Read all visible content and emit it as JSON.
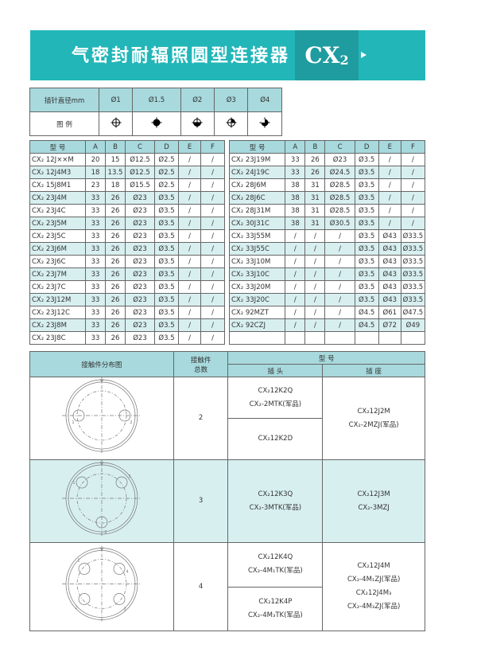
{
  "banner": {
    "title": "气密封耐辐照圆型连接器",
    "code": "CX",
    "code_sub": "2"
  },
  "pin_table": {
    "header_label": "插针直径mm",
    "legend_label": "图 例",
    "diameters": [
      "Ø1",
      "Ø1.5",
      "Ø2",
      "Ø3",
      "Ø4"
    ],
    "icons": [
      "crosshair-open-icon",
      "filled-circle-icon",
      "half-filled-bottom-icon",
      "quarter-filled-icon",
      "three-quarter-filled-icon"
    ]
  },
  "spec_headers": [
    "型 号",
    "A",
    "B",
    "C",
    "D",
    "E",
    "F"
  ],
  "spec_left": [
    [
      "CX₂ 12J××M",
      "20",
      "15",
      "Ø12.5",
      "Ø2.5",
      "/",
      "/"
    ],
    [
      "CX₂ 12J4M3",
      "18",
      "13.5",
      "Ø12.5",
      "Ø2.5",
      "/",
      "/"
    ],
    [
      "CX₂ 15J8M1",
      "23",
      "18",
      "Ø15.5",
      "Ø2.5",
      "/",
      "/"
    ],
    [
      "CX₂ 23J4M",
      "33",
      "26",
      "Ø23",
      "Ø3.5",
      "/",
      "/"
    ],
    [
      "CX₂ 23J4C",
      "33",
      "26",
      "Ø23",
      "Ø3.5",
      "/",
      "/"
    ],
    [
      "CX₂ 23J5M",
      "33",
      "26",
      "Ø23",
      "Ø3.5",
      "/",
      "/"
    ],
    [
      "CX₂ 23J5C",
      "33",
      "26",
      "Ø23",
      "Ø3.5",
      "/",
      "/"
    ],
    [
      "CX₂ 23J6M",
      "33",
      "26",
      "Ø23",
      "Ø3.5",
      "/",
      "/"
    ],
    [
      "CX₂ 23J6C",
      "33",
      "26",
      "Ø23",
      "Ø3.5",
      "/",
      "/"
    ],
    [
      "CX₂ 23J7M",
      "33",
      "26",
      "Ø23",
      "Ø3.5",
      "/",
      "/"
    ],
    [
      "CX₂ 23J7C",
      "33",
      "26",
      "Ø23",
      "Ø3.5",
      "/",
      "/"
    ],
    [
      "CX₂ 23J12M",
      "33",
      "26",
      "Ø23",
      "Ø3.5",
      "/",
      "/"
    ],
    [
      "CX₂ 23J12C",
      "33",
      "26",
      "Ø23",
      "Ø3.5",
      "/",
      "/"
    ],
    [
      "CX₂ 23J8M",
      "33",
      "26",
      "Ø23",
      "Ø3.5",
      "/",
      "/"
    ],
    [
      "CX₂ 23J8C",
      "33",
      "26",
      "Ø23",
      "Ø3.5",
      "/",
      "/"
    ]
  ],
  "spec_right": [
    [
      "CX₂ 23J19M",
      "33",
      "26",
      "Ø23",
      "Ø3.5",
      "/",
      "/"
    ],
    [
      "CX₂ 24J19C",
      "33",
      "26",
      "Ø24.5",
      "Ø3.5",
      "/",
      "/"
    ],
    [
      "CX₂ 28J6M",
      "38",
      "31",
      "Ø28.5",
      "Ø3.5",
      "/",
      "/"
    ],
    [
      "CX₂ 28J6C",
      "38",
      "31",
      "Ø28.5",
      "Ø3.5",
      "/",
      "/"
    ],
    [
      "CX₂ 28J31M",
      "38",
      "31",
      "Ø28.5",
      "Ø3.5",
      "/",
      "/"
    ],
    [
      "CX₂ 30J31C",
      "38",
      "31",
      "Ø30.5",
      "Ø3.5",
      "/",
      "/"
    ],
    [
      "CX₂ 33J55M",
      "/",
      "/",
      "/",
      "Ø3.5",
      "Ø43",
      "Ø33.5"
    ],
    [
      "CX₂ 33J55C",
      "/",
      "/",
      "/",
      "Ø3.5",
      "Ø43",
      "Ø33.5"
    ],
    [
      "CX₂ 33J10M",
      "/",
      "/",
      "/",
      "Ø3.5",
      "Ø43",
      "Ø33.5"
    ],
    [
      "CX₂ 33J10C",
      "/",
      "/",
      "/",
      "Ø3.5",
      "Ø43",
      "Ø33.5"
    ],
    [
      "CX₂ 33J20M",
      "/",
      "/",
      "/",
      "Ø3.5",
      "Ø43",
      "Ø33.5"
    ],
    [
      "CX₂ 33J20C",
      "/",
      "/",
      "/",
      "Ø3.5",
      "Ø43",
      "Ø33.5"
    ],
    [
      "CX₂ 92MZT",
      "/",
      "/",
      "/",
      "Ø4.5",
      "Ø61",
      "Ø47.5"
    ],
    [
      "CX₂ 92CZJ",
      "/",
      "/",
      "/",
      "Ø4.5",
      "Ø72",
      "Ø49"
    ],
    [
      "",
      "",
      "",
      "",
      "",
      "",
      ""
    ]
  ],
  "contact_table": {
    "headers": {
      "layout": "接触件分布图",
      "count_line1": "接触件",
      "count_line2": "总数",
      "model": "型 号",
      "plug": "插 头",
      "socket": "插 座"
    },
    "rows": [
      {
        "count": "2",
        "pin_labels": [
          "1",
          "2"
        ],
        "plug": [
          [
            "CX₂12K2Q",
            "CX₂-2MTK(军品)"
          ],
          [
            "CX₂12K2D"
          ]
        ],
        "socket": [
          "CX₂12J2M",
          "CX₂-2MZJ(军品)"
        ]
      },
      {
        "count": "3",
        "pin_labels": [
          "1",
          "2",
          "3"
        ],
        "plug": [
          [
            "CX₂12K3Q",
            "CX₂-3MTK(军品)"
          ]
        ],
        "socket": [
          "CX₂12J3M",
          "CX₂-3MZJ"
        ]
      },
      {
        "count": "4",
        "pin_labels": [
          "1",
          "2",
          "3",
          "4"
        ],
        "plug": [
          [
            "CX₂12K4Q",
            "CX₂-4M₁TK(军品)"
          ],
          [
            "CX₂12K4P",
            "CX₂-4M₃TK(军品)"
          ]
        ],
        "socket": [
          "CX₂12J4M",
          "CX₂-4M₁ZJ(军品)",
          "CX₂12J4M₃",
          "CX₂-4M₃ZJ(军品)"
        ]
      }
    ]
  }
}
